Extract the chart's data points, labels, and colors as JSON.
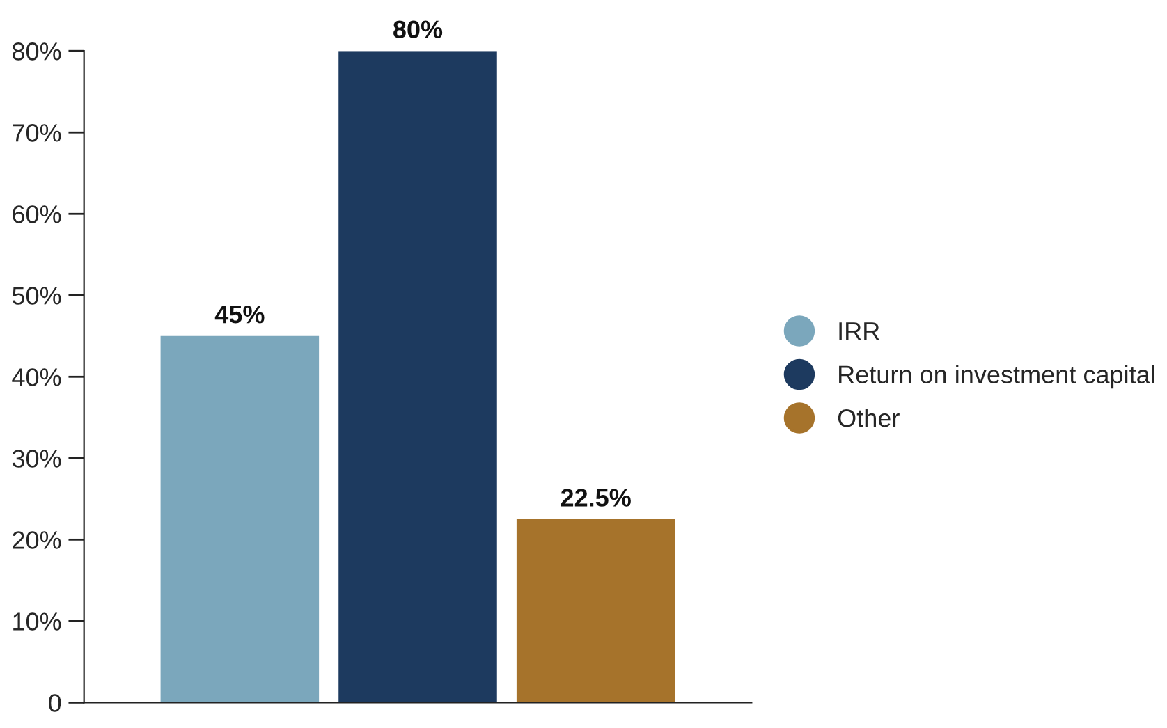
{
  "chart_data": {
    "type": "bar",
    "categories": [
      null,
      null,
      null
    ],
    "series": [
      {
        "name": "IRR",
        "color": "#7ba7bc",
        "values": [
          45,
          null,
          null
        ],
        "value_labels": [
          "45%",
          null,
          null
        ]
      },
      {
        "name": "Return on investment capital",
        "color": "#1d3a5f",
        "values": [
          null,
          80,
          null
        ],
        "value_labels": [
          null,
          "80%",
          null
        ]
      },
      {
        "name": "Other",
        "color": "#a6732b",
        "values": [
          null,
          null,
          22.5
        ],
        "value_labels": [
          null,
          null,
          "22.5%"
        ]
      }
    ],
    "ylim": [
      0,
      80
    ],
    "yticks": [
      0,
      {
        "value": 10,
        "label": "10%"
      },
      {
        "value": 20,
        "label": "20%"
      },
      {
        "value": 30,
        "label": "30%"
      },
      {
        "value": 40,
        "label": "40%"
      },
      {
        "value": 50,
        "label": "50%"
      },
      {
        "value": 60,
        "label": "60%"
      },
      {
        "value": 70,
        "label": "70%"
      },
      {
        "value": 80,
        "label": "80%"
      }
    ],
    "tick_labels": "y",
    "grid": false,
    "legend": "right"
  }
}
